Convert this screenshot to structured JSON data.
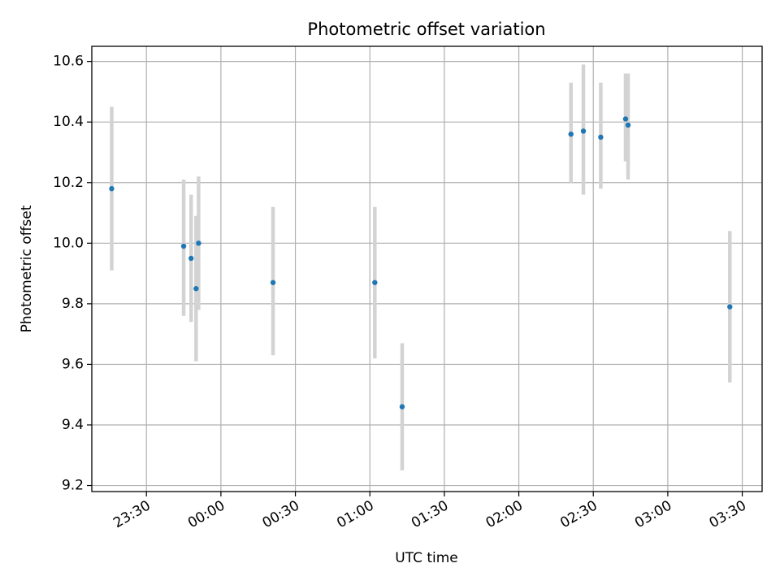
{
  "chart_data": {
    "type": "scatter",
    "title": "Photometric offset variation",
    "xlabel": "UTC time",
    "ylabel": "Photometric offset",
    "xlim": [
      "23:08",
      "03:38"
    ],
    "ylim": [
      9.18,
      10.65
    ],
    "x_ticks": [
      "23:30",
      "00:00",
      "00:30",
      "01:00",
      "01:30",
      "02:00",
      "02:30",
      "03:00",
      "03:30"
    ],
    "y_ticks": [
      "9.2",
      "9.4",
      "9.6",
      "9.8",
      "10.0",
      "10.2",
      "10.4",
      "10.6"
    ],
    "grid": true,
    "legend": "none",
    "colors": {
      "marker": "#1f77b4",
      "error_bar": "#d3d3d3",
      "grid": "#b0b0b0"
    },
    "series": [
      {
        "points": [
          {
            "x": "23:16",
            "y": 10.18,
            "yerr_low": 9.91,
            "yerr_high": 10.45
          },
          {
            "x": "23:45",
            "y": 9.99,
            "yerr_low": 9.76,
            "yerr_high": 10.21
          },
          {
            "x": "23:48",
            "y": 9.95,
            "yerr_low": 9.74,
            "yerr_high": 10.16
          },
          {
            "x": "23:50",
            "y": 9.85,
            "yerr_low": 9.61,
            "yerr_high": 10.09
          },
          {
            "x": "23:51",
            "y": 10.0,
            "yerr_low": 9.78,
            "yerr_high": 10.22
          },
          {
            "x": "00:21",
            "y": 9.87,
            "yerr_low": 9.63,
            "yerr_high": 10.12
          },
          {
            "x": "01:02",
            "y": 9.87,
            "yerr_low": 9.62,
            "yerr_high": 10.12
          },
          {
            "x": "01:13",
            "y": 9.46,
            "yerr_low": 9.25,
            "yerr_high": 9.67
          },
          {
            "x": "02:21",
            "y": 10.36,
            "yerr_low": 10.2,
            "yerr_high": 10.53
          },
          {
            "x": "02:26",
            "y": 10.37,
            "yerr_low": 10.16,
            "yerr_high": 10.59
          },
          {
            "x": "02:33",
            "y": 10.35,
            "yerr_low": 10.18,
            "yerr_high": 10.53
          },
          {
            "x": "02:43",
            "y": 10.41,
            "yerr_low": 10.27,
            "yerr_high": 10.56
          },
          {
            "x": "02:44",
            "y": 10.39,
            "yerr_low": 10.21,
            "yerr_high": 10.56
          },
          {
            "x": "03:25",
            "y": 9.79,
            "yerr_low": 9.54,
            "yerr_high": 10.04
          }
        ]
      }
    ]
  }
}
